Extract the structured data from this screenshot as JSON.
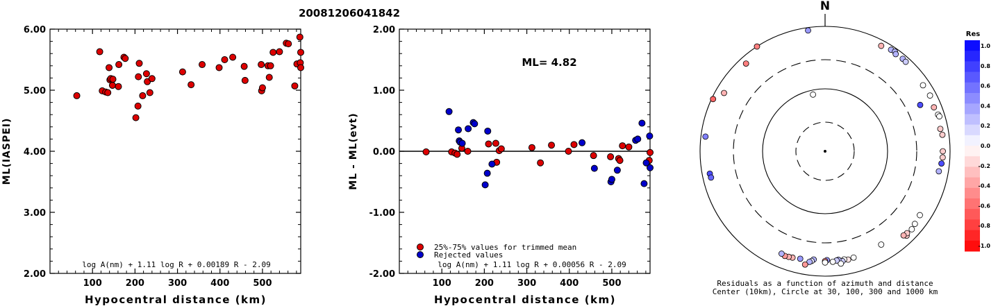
{
  "figure_title": "20081206041842",
  "chart_data": [
    {
      "type": "scatter",
      "title": "",
      "xlabel": "Hypocentral distance (km)",
      "ylabel": "ML(IASPEI)",
      "xlim": [
        0,
        590
      ],
      "ylim": [
        2.0,
        6.0
      ],
      "xticks": [
        100,
        200,
        300,
        400,
        500
      ],
      "yticks": [
        "2.00",
        "3.00",
        "4.00",
        "5.00",
        "6.00"
      ],
      "formula": "log A(nm) + 1.11 log R + 0.00189 R - 2.09",
      "marker_color": "#dd0000",
      "points": [
        [
          63,
          4.91
        ],
        [
          117,
          5.63
        ],
        [
          123,
          4.99
        ],
        [
          131,
          4.97
        ],
        [
          136,
          4.96
        ],
        [
          139,
          5.37
        ],
        [
          141,
          5.17
        ],
        [
          143,
          5.19
        ],
        [
          147,
          5.08
        ],
        [
          148,
          5.18
        ],
        [
          161,
          5.06
        ],
        [
          162,
          5.42
        ],
        [
          174,
          5.54
        ],
        [
          177,
          5.52
        ],
        [
          202,
          4.55
        ],
        [
          207,
          4.74
        ],
        [
          208,
          5.22
        ],
        [
          210,
          5.44
        ],
        [
          218,
          4.91
        ],
        [
          227,
          5.27
        ],
        [
          229,
          5.14
        ],
        [
          235,
          4.96
        ],
        [
          240,
          5.19
        ],
        [
          312,
          5.3
        ],
        [
          332,
          5.09
        ],
        [
          358,
          5.42
        ],
        [
          398,
          5.37
        ],
        [
          411,
          5.5
        ],
        [
          430,
          5.54
        ],
        [
          457,
          5.39
        ],
        [
          459,
          5.16
        ],
        [
          497,
          5.42
        ],
        [
          498,
          4.99
        ],
        [
          500,
          5.04
        ],
        [
          513,
          5.4
        ],
        [
          516,
          5.21
        ],
        [
          519,
          5.4
        ],
        [
          525,
          5.62
        ],
        [
          540,
          5.63
        ],
        [
          556,
          5.77
        ],
        [
          561,
          5.76
        ],
        [
          576,
          5.07
        ],
        [
          581,
          5.43
        ],
        [
          588,
          5.87
        ],
        [
          589,
          5.45
        ],
        [
          590,
          5.62
        ],
        [
          590,
          5.37
        ]
      ]
    },
    {
      "type": "scatter",
      "title": "",
      "xlabel": "Hypocentral distance (km)",
      "ylabel": "ML - ML(evt)",
      "xlim": [
        0,
        590
      ],
      "ylim": [
        -2.0,
        2.0
      ],
      "xticks": [
        100,
        200,
        300,
        400,
        500
      ],
      "yticks": [
        "-2.00",
        "-1.00",
        "0.00",
        "1.00",
        "2.00"
      ],
      "annotation": "ML= 4.82",
      "formula": "log A(nm) + 1.11 log R + 0.00056 R - 2.09",
      "legend": [
        {
          "label": "25%-75% values for trimmed mean",
          "color": "#dd0000"
        },
        {
          "label": "Rejected values",
          "color": "#0000cc"
        }
      ],
      "series": [
        {
          "name": "25%-75% values for trimmed mean",
          "color": "#dd0000",
          "points": [
            [
              63,
              -0.01
            ],
            [
              123,
              -0.01
            ],
            [
              131,
              -0.03
            ],
            [
              136,
              -0.05
            ],
            [
              147,
              0.05
            ],
            [
              161,
              0.0
            ],
            [
              210,
              0.12
            ],
            [
              227,
              0.13
            ],
            [
              229,
              -0.18
            ],
            [
              235,
              0.01
            ],
            [
              240,
              0.04
            ],
            [
              312,
              0.06
            ],
            [
              332,
              -0.19
            ],
            [
              358,
              0.1
            ],
            [
              398,
              0.0
            ],
            [
              411,
              0.11
            ],
            [
              457,
              -0.07
            ],
            [
              497,
              -0.09
            ],
            [
              516,
              -0.12
            ],
            [
              519,
              -0.15
            ],
            [
              525,
              0.09
            ],
            [
              540,
              0.07
            ],
            [
              590,
              -0.02
            ],
            [
              588,
              -0.15
            ]
          ]
        },
        {
          "name": "Rejected values",
          "color": "#0000cc",
          "points": [
            [
              117,
              0.65
            ],
            [
              139,
              0.35
            ],
            [
              141,
              0.17
            ],
            [
              143,
              0.15
            ],
            [
              148,
              0.13
            ],
            [
              162,
              0.37
            ],
            [
              174,
              0.47
            ],
            [
              177,
              0.45
            ],
            [
              202,
              -0.55
            ],
            [
              207,
              -0.36
            ],
            [
              208,
              0.33
            ],
            [
              218,
              -0.21
            ],
            [
              430,
              0.14
            ],
            [
              459,
              -0.28
            ],
            [
              498,
              -0.5
            ],
            [
              500,
              -0.46
            ],
            [
              513,
              -0.31
            ],
            [
              556,
              0.18
            ],
            [
              561,
              0.2
            ],
            [
              571,
              0.46
            ],
            [
              576,
              -0.53
            ],
            [
              581,
              -0.19
            ],
            [
              589,
              0.25
            ],
            [
              590,
              -0.27
            ]
          ]
        }
      ]
    },
    {
      "type": "scatter",
      "title": "",
      "north_label": "N",
      "caption_line1": "Residuals as a function of azimuth and distance",
      "caption_line2": "Center (10km), Circle at 30, 100, 300 and 1000 km",
      "colorbar_title": "Res",
      "colorbar_ticks": [
        "1.0",
        "0.8",
        "0.6",
        "0.4",
        "0.2",
        "0.0",
        "-0.2",
        "-0.4",
        "-0.6",
        "-0.8",
        "-1.0"
      ],
      "colorbar_range": [
        -1.0,
        1.0
      ],
      "color_positive": "#0000ff",
      "color_negative": "#ff0000",
      "rings_km": [
        30,
        100,
        300,
        1000
      ],
      "points_azimuth_distance_residual": [
        [
          -33,
          1000,
          -0.5
        ],
        [
          -42,
          780,
          -0.5
        ],
        [
          -65,
          950,
          -0.6
        ],
        [
          -60,
          740,
          -0.3
        ],
        [
          -83,
          850,
          0.5
        ],
        [
          -101,
          760,
          0.7
        ],
        [
          -103,
          750,
          0.6
        ],
        [
          -12,
          85,
          0.0
        ],
        [
          -8,
          900,
          0.4
        ],
        [
          28,
          820,
          -0.3
        ],
        [
          33,
          870,
          0.3
        ],
        [
          35,
          890,
          0.3
        ],
        [
          36,
          840,
          0.3
        ],
        [
          40,
          860,
          0.3
        ],
        [
          42,
          850,
          0.2
        ],
        [
          56,
          780,
          0.0
        ],
        [
          62,
          800,
          0.0
        ],
        [
          64,
          500,
          0.7
        ],
        [
          68,
          760,
          -0.3
        ],
        [
          72,
          800,
          0.0
        ],
        [
          73,
          820,
          0.0
        ],
        [
          79,
          760,
          -0.2
        ],
        [
          82,
          790,
          -0.2
        ],
        [
          90,
          770,
          -0.2
        ],
        [
          93,
          770,
          -0.2
        ],
        [
          96,
          750,
          0.7
        ],
        [
          100,
          710,
          0.3
        ],
        [
          124,
          680,
          0.0
        ],
        [
          129,
          710,
          0.0
        ],
        [
          132,
          740,
          0.0
        ],
        [
          136,
          760,
          -0.2
        ],
        [
          135,
          720,
          -0.2
        ],
        [
          137,
          700,
          -0.3
        ],
        [
          149,
          560,
          0.0
        ],
        [
          165,
          585,
          0.0
        ],
        [
          168,
          600,
          -0.1
        ],
        [
          170,
          580,
          0.0
        ],
        [
          171,
          610,
          0.2
        ],
        [
          173,
          570,
          0.3
        ],
        [
          172,
          660,
          0.0
        ],
        [
          174,
          580,
          0.2
        ],
        [
          176,
          600,
          0.0
        ],
        [
          179,
          560,
          0.4
        ],
        [
          180,
          580,
          -0.4
        ],
        [
          186,
          560,
          0.3
        ],
        [
          187,
          595,
          0.1
        ],
        [
          180,
          610,
          0.0
        ],
        [
          188,
          620,
          0.3
        ],
        [
          193,
          590,
          0.4
        ],
        [
          190,
          700,
          -0.4
        ],
        [
          197,
          610,
          -0.3
        ],
        [
          199,
          620,
          -0.3
        ],
        [
          201,
          630,
          -0.4
        ],
        [
          203,
          610,
          0.3
        ]
      ]
    }
  ]
}
